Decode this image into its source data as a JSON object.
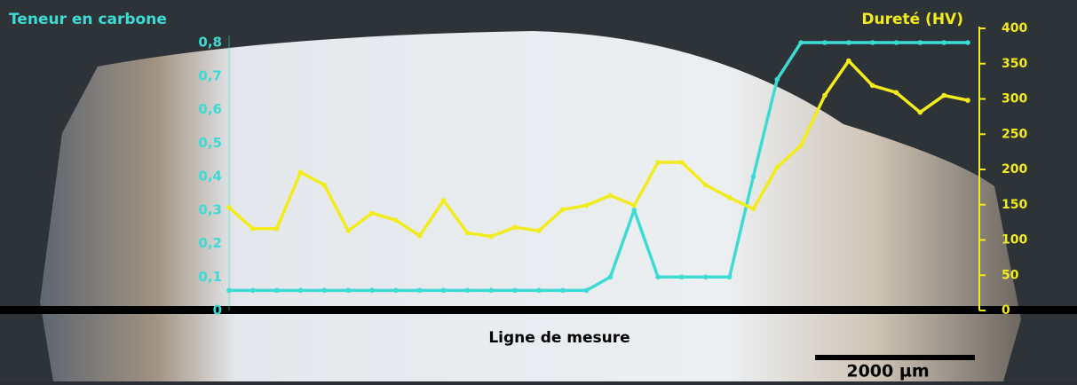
{
  "chart_data": {
    "type": "line",
    "ylabel": "Teneur en carbone",
    "y2label": "Dureté (HV)",
    "xlabel": "Ligne de mesure",
    "annotation": "2000 µm",
    "categories": [
      null,
      null,
      null,
      null,
      null,
      null,
      null,
      null,
      null,
      null,
      null,
      null,
      null,
      null,
      null,
      null,
      null,
      null,
      null,
      null,
      null,
      null,
      null,
      null,
      null,
      null,
      null,
      null,
      null,
      null,
      null,
      null
    ],
    "ylim": [
      0,
      0.8
    ],
    "yticks": [
      0,
      {
        "value": 0.1,
        "label": "0,1"
      },
      {
        "value": 0.2,
        "label": "0,2"
      },
      {
        "value": 0.3,
        "label": "0,3"
      },
      {
        "value": 0.4,
        "label": "0,4"
      },
      {
        "value": 0.5,
        "label": "0,5"
      },
      {
        "value": 0.6,
        "label": "0,6"
      },
      {
        "value": 0.7,
        "label": "0,7"
      },
      {
        "value": 0.8,
        "label": "0,8"
      }
    ],
    "y2lim": [
      0,
      400
    ],
    "y2ticks": [
      0,
      50,
      100,
      150,
      200,
      250,
      300,
      350,
      400
    ],
    "series": [
      {
        "color": "#3ddbd3",
        "values": [
          0.06,
          0.06,
          0.06,
          0.06,
          0.06,
          0.06,
          0.06,
          0.06,
          0.06,
          0.06,
          0.06,
          0.06,
          0.06,
          0.06,
          0.06,
          0.06,
          0.1,
          0.3,
          0.1,
          0.1,
          0.1,
          0.1,
          0.4,
          0.69,
          0.8,
          0.8,
          0.8,
          0.8,
          0.8,
          0.8,
          0.8,
          0.8
        ]
      },
      {
        "color": "#f2ec1c",
        "axis": "y2",
        "values": [
          146,
          116,
          116,
          196,
          178,
          113,
          138,
          128,
          106,
          156,
          110,
          105,
          118,
          113,
          143,
          149,
          163,
          149,
          210,
          210,
          178,
          160,
          144,
          203,
          234,
          305,
          354,
          319,
          309,
          281,
          305,
          298
        ]
      }
    ]
  }
}
